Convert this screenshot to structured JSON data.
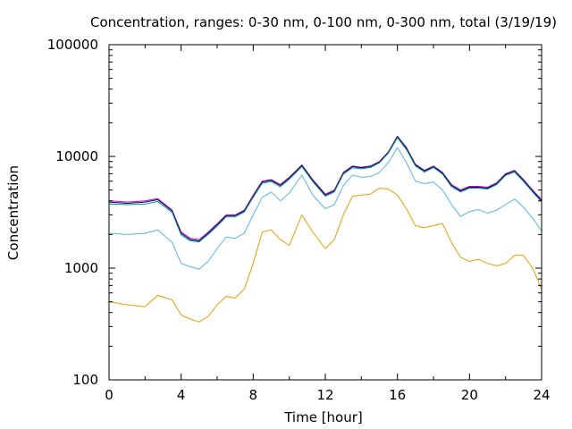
{
  "chart_data": {
    "type": "line",
    "title": "Concentration, ranges: 0-30 nm, 0-100 nm, 0-300 nm, total (3/19/19)",
    "xlabel": "Time [hour]",
    "ylabel": "Concentration",
    "xlim": [
      0,
      24
    ],
    "ylim": [
      100,
      100000
    ],
    "yscale": "log",
    "grid": false,
    "legend": "none",
    "x_ticks": [
      0,
      4,
      8,
      12,
      16,
      20,
      24
    ],
    "x_tick_labels": [
      "0",
      "4",
      "8",
      "12",
      "16",
      "20",
      "24"
    ],
    "y_ticks": [
      100,
      1000,
      10000,
      100000
    ],
    "y_tick_labels": [
      "100",
      "1000",
      "10000",
      "100000"
    ],
    "x": [
      0,
      1,
      2,
      2.7,
      3.5,
      4,
      4.5,
      5,
      5.5,
      6,
      6.5,
      7,
      7.5,
      8,
      8.5,
      9,
      9.5,
      10,
      10.7,
      11.3,
      12,
      12.5,
      13,
      13.5,
      14,
      14.5,
      15,
      15.5,
      16,
      16.5,
      17,
      17.5,
      18,
      18.5,
      19,
      19.5,
      20,
      20.5,
      21,
      21.5,
      22,
      22.5,
      23,
      23.5,
      24
    ],
    "series": [
      {
        "color": "#cc00cc",
        "values": [
          4000,
          3900,
          4000,
          4200,
          3300,
          2100,
          1850,
          1800,
          2100,
          2500,
          3000,
          3000,
          3300,
          4500,
          6000,
          6200,
          5600,
          6500,
          8400,
          6200,
          4600,
          5000,
          7200,
          8200,
          8000,
          8200,
          9000,
          11000,
          15200,
          12000,
          8500,
          7500,
          8200,
          7200,
          5600,
          5000,
          5400,
          5400,
          5300,
          5800,
          7000,
          7500,
          6200,
          5000,
          4100
        ]
      },
      {
        "color": "#000066",
        "values": [
          3900,
          3800,
          3900,
          4100,
          3250,
          2050,
          1800,
          1750,
          2050,
          2450,
          2950,
          2950,
          3250,
          4400,
          5900,
          6100,
          5500,
          6400,
          8300,
          6100,
          4500,
          4900,
          7100,
          8100,
          7900,
          8100,
          8900,
          10900,
          15000,
          11800,
          8400,
          7400,
          8100,
          7100,
          5500,
          4900,
          5300,
          5300,
          5200,
          5700,
          6900,
          7400,
          6100,
          4900,
          4000
        ]
      },
      {
        "color": "#009e73",
        "values": [
          3750,
          3700,
          3750,
          3950,
          3150,
          1980,
          1760,
          1720,
          2000,
          2380,
          2880,
          2880,
          3180,
          4300,
          5750,
          5950,
          5350,
          6250,
          8100,
          5950,
          4400,
          4800,
          6950,
          7900,
          7750,
          7950,
          8750,
          10700,
          14700,
          11500,
          8200,
          7250,
          7950,
          6950,
          5350,
          4800,
          5200,
          5200,
          5100,
          5600,
          6750,
          7250,
          5950,
          4800,
          3900
        ]
      },
      {
        "color": "#56b4e9",
        "values": [
          2050,
          2000,
          2050,
          2200,
          1700,
          1100,
          1030,
          980,
          1150,
          1500,
          1900,
          1850,
          2050,
          3000,
          4300,
          4800,
          4000,
          4700,
          6800,
          4500,
          3400,
          3700,
          5500,
          6800,
          6500,
          6600,
          7200,
          8800,
          12000,
          8800,
          6000,
          5700,
          5900,
          5000,
          3700,
          2900,
          3200,
          3350,
          3100,
          3300,
          3700,
          4150,
          3500,
          2800,
          2150
        ]
      },
      {
        "color": "#e69f00",
        "values": [
          500,
          470,
          450,
          570,
          520,
          380,
          350,
          330,
          370,
          470,
          560,
          540,
          650,
          1100,
          2100,
          2200,
          1800,
          1600,
          3000,
          2100,
          1500,
          1800,
          3000,
          4400,
          4500,
          4600,
          5200,
          5100,
          4500,
          3400,
          2400,
          2300,
          2400,
          2500,
          1700,
          1250,
          1150,
          1200,
          1100,
          1050,
          1100,
          1300,
          1300,
          1000,
          650
        ]
      }
    ]
  }
}
